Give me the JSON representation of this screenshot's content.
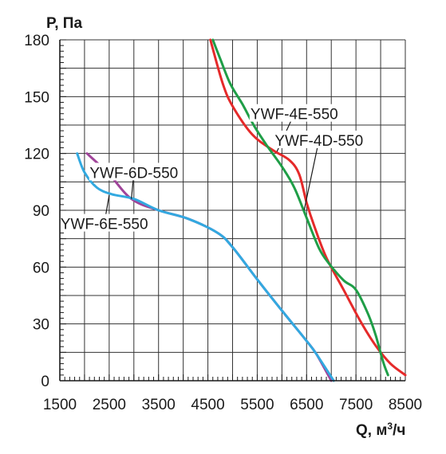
{
  "chart_data": {
    "type": "line",
    "ylabel": "P, Па",
    "xlabel_prefix": "Q, м",
    "xlabel_sup": "3",
    "xlabel_suffix": "/ч",
    "xlim": [
      1500,
      8500
    ],
    "ylim": [
      0,
      180
    ],
    "x_ticks": [
      1500,
      2500,
      3500,
      4500,
      5500,
      6500,
      7500,
      8500
    ],
    "y_ticks": [
      0,
      30,
      60,
      90,
      120,
      150,
      180
    ],
    "grid": true,
    "series": [
      {
        "name": "YWF-6D-550",
        "color": "#a0449a",
        "points": [
          [
            2050,
            120
          ],
          [
            2500,
            109
          ],
          [
            2950,
            96
          ],
          [
            3500,
            90
          ],
          [
            4100,
            85.5
          ],
          [
            4700,
            78
          ],
          [
            5000,
            70.5
          ],
          [
            5500,
            53.5
          ],
          [
            6000,
            37
          ],
          [
            6500,
            21
          ],
          [
            6700,
            14
          ],
          [
            7000,
            0
          ]
        ]
      },
      {
        "name": "YWF-6E-550",
        "color": "#32a9e0",
        "points": [
          [
            1850,
            120
          ],
          [
            2000,
            110
          ],
          [
            2250,
            102
          ],
          [
            2550,
            98.5
          ],
          [
            3000,
            96
          ],
          [
            3500,
            90
          ],
          [
            4100,
            85.5
          ],
          [
            4700,
            78
          ],
          [
            5000,
            70.5
          ],
          [
            5500,
            53.5
          ],
          [
            6000,
            37
          ],
          [
            6500,
            21
          ],
          [
            6700,
            14
          ],
          [
            7050,
            0
          ]
        ]
      },
      {
        "name": "YWF-4E-550",
        "color": "#e52a2a",
        "points": [
          [
            4550,
            180
          ],
          [
            4800,
            157
          ],
          [
            5000,
            145
          ],
          [
            5400,
            130
          ],
          [
            5800,
            122
          ],
          [
            6150,
            116.5
          ],
          [
            6350,
            109
          ],
          [
            6500,
            94
          ],
          [
            6650,
            82
          ],
          [
            6900,
            65
          ],
          [
            7250,
            48
          ],
          [
            7600,
            31
          ],
          [
            7900,
            18.5
          ],
          [
            8200,
            9
          ],
          [
            8500,
            3
          ]
        ]
      },
      {
        "name": "YWF-4D-550",
        "color": "#1f9e47",
        "points": [
          [
            4600,
            180
          ],
          [
            4750,
            170
          ],
          [
            4950,
            157
          ],
          [
            5200,
            146
          ],
          [
            5450,
            134
          ],
          [
            5700,
            124
          ],
          [
            6000,
            113
          ],
          [
            6250,
            102
          ],
          [
            6500,
            86
          ],
          [
            6750,
            70
          ],
          [
            6950,
            62
          ],
          [
            7250,
            53
          ],
          [
            7500,
            48
          ],
          [
            7750,
            35
          ],
          [
            7900,
            24
          ],
          [
            8050,
            10
          ],
          [
            8150,
            3
          ]
        ]
      }
    ],
    "annotations": [
      {
        "text": "YWF-6D-550",
        "series": "YWF-6D-550",
        "at": [
          2950,
          96
        ],
        "label_pos": [
          3000,
          110
        ]
      },
      {
        "text": "YWF-6E-550",
        "series": "YWF-6E-550",
        "at": [
          2500,
          98
        ],
        "label_pos": [
          2400,
          83
        ]
      },
      {
        "text": "YWF-4E-550",
        "series": "YWF-4E-550",
        "at": [
          5900,
          121
        ],
        "label_pos": [
          6250,
          141
        ]
      },
      {
        "text": "YWF-4D-550",
        "series": "YWF-4D-550",
        "at": [
          6450,
          90
        ],
        "label_pos": [
          6750,
          127
        ]
      }
    ]
  }
}
